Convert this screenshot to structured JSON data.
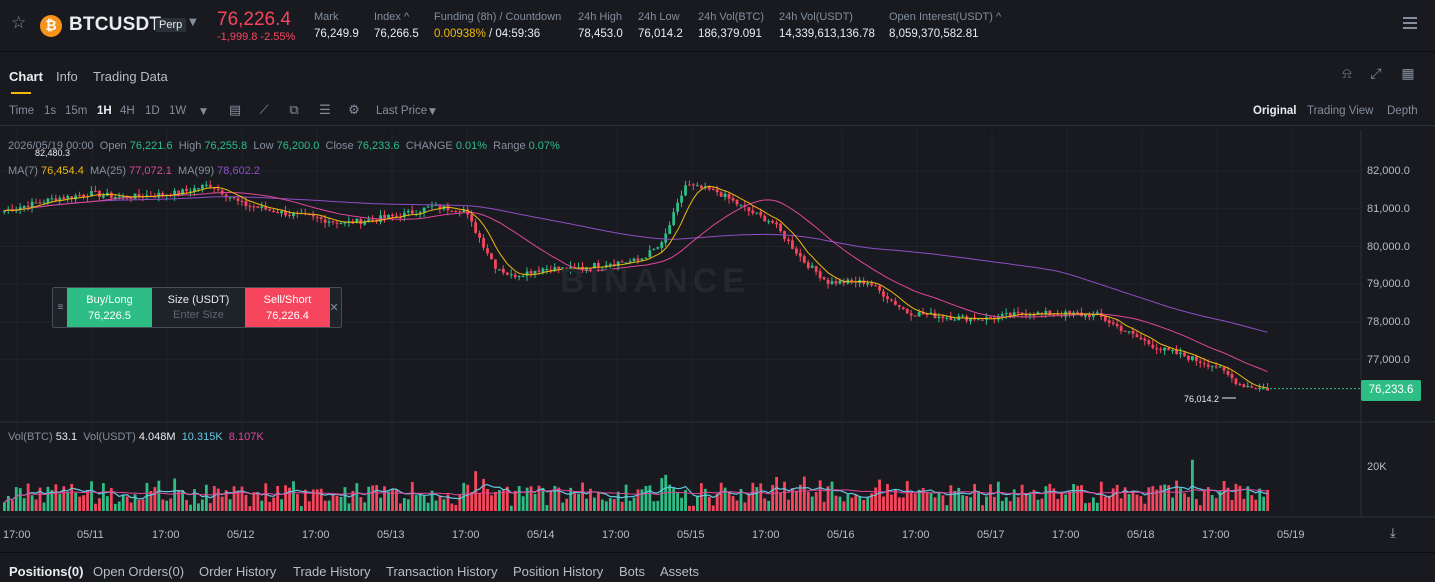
{
  "header": {
    "symbol": "BTCUSDT",
    "contract_type": "Perp",
    "last_price": "76,226.4",
    "change": "-1,999.8 -2.55%",
    "stats": [
      {
        "label": "Mark",
        "value": "76,249.9"
      },
      {
        "label": "Index ^",
        "value": "76,266.5"
      },
      {
        "label": "Funding (8h) / Countdown",
        "value": "0.00938% / 04:59:36"
      },
      {
        "label": "24h High",
        "value": "78,453.0"
      },
      {
        "label": "24h Low",
        "value": "76,014.2"
      },
      {
        "label": "24h Vol(BTC)",
        "value": "186,379.091"
      },
      {
        "label": "24h Vol(USDT)",
        "value": "14,339,613,136.78"
      },
      {
        "label": "Open Interest(USDT) ^",
        "value": "8,059,370,582.81"
      }
    ],
    "funding_rate": "0.00938%",
    "funding_countdown": "/ 04:59:36"
  },
  "tabs": [
    {
      "label": "Chart"
    },
    {
      "label": "Info"
    },
    {
      "label": "Trading Data"
    }
  ],
  "toolbar": {
    "intervals": [
      "Time",
      "1s",
      "15m",
      "1H",
      "4H",
      "1D",
      "1W"
    ],
    "active_interval": "1H",
    "price_type": "Last Price",
    "views": [
      "Original",
      "Trading View",
      "Depth"
    ],
    "active_view": "Original"
  },
  "legend": {
    "date": "2026/05/19 00:00",
    "open_label": "Open",
    "open": "76,221.6",
    "high_label": "High",
    "high": "76,255.8",
    "low_label": "Low",
    "low": "76,200.0",
    "close_label": "Close",
    "close": "76,233.6",
    "change_label": "CHANGE",
    "change": "0.01%",
    "range_label": "Range",
    "range": "0.07%",
    "ma7_label": "MA(7)",
    "ma7": "76,454.4",
    "ma25_label": "MA(25)",
    "ma25": "77,072.1",
    "ma99_label": "MA(99)",
    "ma99": "78,602.2",
    "vol_btc_label": "Vol(BTC)",
    "vol_btc": "53.1",
    "vol_usdt_label": "Vol(USDT)",
    "vol_usdt": "4.048M",
    "vol_ma1": "10.315K",
    "vol_ma2": "8.107K"
  },
  "chart_data": {
    "type": "candlestick",
    "interval": "1H",
    "y_axis": [
      "82,000.0",
      "81,000.0",
      "80,000.0",
      "79,000.0",
      "78,000.0",
      "77,000.0"
    ],
    "ylim": [
      76000,
      82400
    ],
    "vol_axis": [
      "20K"
    ],
    "x_labels": [
      "17:00",
      "05/11",
      "17:00",
      "05/12",
      "17:00",
      "05/13",
      "17:00",
      "05/14",
      "17:00",
      "05/15",
      "17:00",
      "05/16",
      "17:00",
      "05/17",
      "17:00",
      "05/18",
      "17:00",
      "05/19"
    ],
    "high_marker": "82,480.3",
    "low_marker": "76,014.2",
    "current_price": "76,233.6",
    "close_anchors": [
      [
        0,
        80950
      ],
      [
        12,
        81250
      ],
      [
        22,
        81400
      ],
      [
        30,
        81300
      ],
      [
        44,
        81420
      ],
      [
        52,
        81640
      ],
      [
        60,
        81120
      ],
      [
        72,
        80860
      ],
      [
        86,
        80620
      ],
      [
        100,
        80820
      ],
      [
        108,
        81050
      ],
      [
        116,
        80980
      ],
      [
        124,
        79480
      ],
      [
        128,
        79220
      ],
      [
        136,
        79420
      ],
      [
        144,
        79400
      ],
      [
        152,
        79560
      ],
      [
        160,
        79620
      ],
      [
        166,
        80050
      ],
      [
        172,
        81620
      ],
      [
        180,
        81450
      ],
      [
        188,
        80940
      ],
      [
        194,
        80640
      ],
      [
        202,
        79600
      ],
      [
        208,
        79060
      ],
      [
        218,
        79060
      ],
      [
        228,
        78260
      ],
      [
        238,
        78130
      ],
      [
        248,
        78090
      ],
      [
        258,
        78230
      ],
      [
        268,
        78210
      ],
      [
        276,
        78180
      ],
      [
        284,
        77700
      ],
      [
        292,
        77280
      ],
      [
        298,
        77100
      ],
      [
        306,
        76820
      ],
      [
        312,
        76350
      ],
      [
        318,
        76230
      ]
    ]
  },
  "trade_widget": {
    "buy_label": "Buy/Long",
    "buy_price": "76,226.5",
    "size_label": "Size (USDT)",
    "size_placeholder": "Enter Size",
    "sell_label": "Sell/Short",
    "sell_price": "76,226.4"
  },
  "watermark": "BINANCE",
  "bottom_tabs": [
    {
      "label": "Positions(0)"
    },
    {
      "label": "Open Orders(0)"
    },
    {
      "label": "Order History"
    },
    {
      "label": "Trade History"
    },
    {
      "label": "Transaction History"
    },
    {
      "label": "Position History"
    },
    {
      "label": "Bots"
    },
    {
      "label": "Assets"
    }
  ],
  "colors": {
    "up": "#2ebd85",
    "down": "#f6465d",
    "ma7": "#f0b90b",
    "ma25": "#e0469a",
    "ma99": "#8e4ec6",
    "vma1": "#64c7e0",
    "vma2": "#e0469a"
  }
}
